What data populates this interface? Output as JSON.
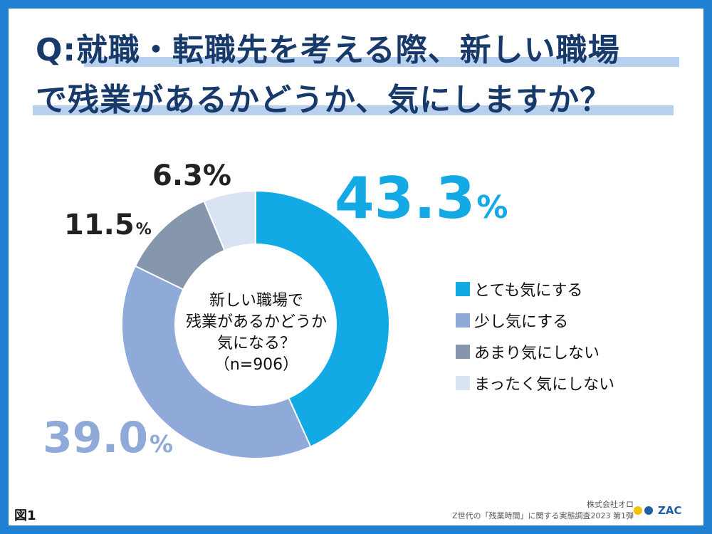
{
  "title": {
    "line1": "Q:就職・転職先を考える際、新しい職場",
    "line2": "で残業があるかどうか、気にしますか？"
  },
  "center_label": {
    "line1": "新しい職場で",
    "line2": "残業があるかどうか",
    "line3": "気になる？",
    "line4": "（n=906）"
  },
  "figure_label": "図1",
  "credit": {
    "company": "株式会社オロ",
    "survey": "Z世代の「残業時間」に関する実態調査2023 第1弾"
  },
  "logo": {
    "text": "ZAC",
    "dot_colors": [
      "#f2c200",
      "#1f5fa8"
    ]
  },
  "chart_data": {
    "type": "pie",
    "donut": true,
    "n": 906,
    "unit": "%",
    "categories": [
      "とても気にする",
      "少し気にする",
      "あまり気にしない",
      "まったく気にしない"
    ],
    "values": [
      43.3,
      39.0,
      11.5,
      6.3
    ],
    "value_labels": [
      "43.3",
      "39.0",
      "11.5",
      "6.3"
    ],
    "colors": [
      "#13a9e5",
      "#8fa9d9",
      "#8696ad",
      "#d9e3f1"
    ],
    "legend_position": "right",
    "start_angle_deg": 0,
    "direction": "clockwise"
  }
}
